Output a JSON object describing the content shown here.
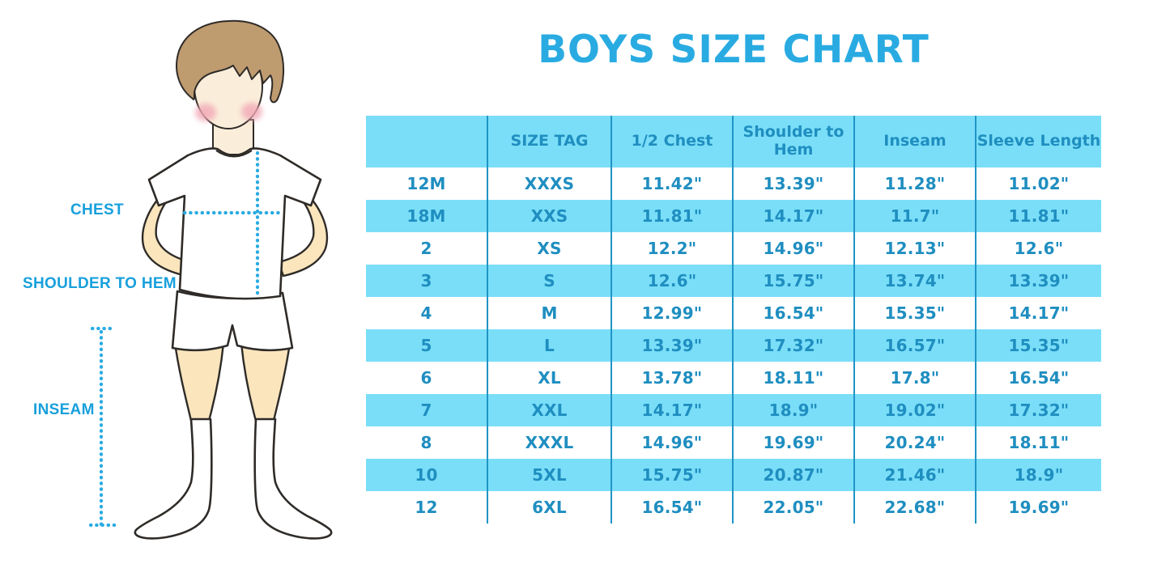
{
  "colors": {
    "title": "#29abe2",
    "label": "#18a0dc",
    "accent": "#29abe2",
    "ink": "#1f8ec0",
    "cell-blue": "#7adef8",
    "line": "#1f94c6",
    "skin-face": "#faeeda",
    "skin-limb": "#fae5bd",
    "hair": "#bf9b70",
    "blush": "#f2a7b6",
    "outline": "#2e2b28"
  },
  "figure": {
    "labels": {
      "chest": "CHEST",
      "shoulder_to_hem": "SHOULDER TO HEM",
      "inseam": "INSEAM"
    }
  },
  "chart_data": {
    "type": "table",
    "title": "BOYS SIZE CHART",
    "headers": [
      "",
      "SIZE TAG",
      "1/2 Chest",
      "Shoulder to Hem",
      "Inseam",
      "Sleeve Length"
    ],
    "rows": [
      [
        "12M",
        "XXXS",
        "11.42\"",
        "13.39\"",
        "11.28\"",
        "11.02\""
      ],
      [
        "18M",
        "XXS",
        "11.81\"",
        "14.17\"",
        "11.7\"",
        "11.81\""
      ],
      [
        "2",
        "XS",
        "12.2\"",
        "14.96\"",
        "12.13\"",
        "12.6\""
      ],
      [
        "3",
        "S",
        "12.6\"",
        "15.75\"",
        "13.74\"",
        "13.39\""
      ],
      [
        "4",
        "M",
        "12.99\"",
        "16.54\"",
        "15.35\"",
        "14.17\""
      ],
      [
        "5",
        "L",
        "13.39\"",
        "17.32\"",
        "16.57\"",
        "15.35\""
      ],
      [
        "6",
        "XL",
        "13.78\"",
        "18.11\"",
        "17.8\"",
        "16.54\""
      ],
      [
        "7",
        "XXL",
        "14.17\"",
        "18.9\"",
        "19.02\"",
        "17.32\""
      ],
      [
        "8",
        "XXXL",
        "14.96\"",
        "19.69\"",
        "20.24\"",
        "18.11\""
      ],
      [
        "10",
        "5XL",
        "15.75\"",
        "20.87\"",
        "21.46\"",
        "18.9\""
      ],
      [
        "12",
        "6XL",
        "16.54\"",
        "22.05\"",
        "22.68\"",
        "19.69\""
      ]
    ]
  }
}
